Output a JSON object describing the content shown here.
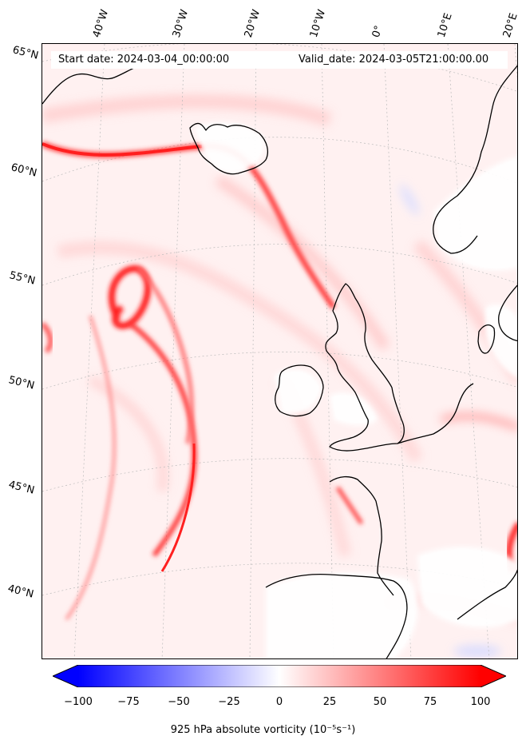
{
  "map": {
    "start_label": "Start date: 2024-03-04_00:00:00",
    "valid_label": "Valid_date: 2024-03-05T21:00:00.00",
    "lat_labels": [
      "65°N",
      "60°N",
      "55°N",
      "50°N",
      "45°N",
      "40°N"
    ],
    "lon_labels": [
      "40°W",
      "30°W",
      "20°W",
      "10°W",
      "0°",
      "10°E",
      "20°E"
    ]
  },
  "colorbar": {
    "ticks": [
      "−100",
      "−75",
      "−50",
      "−25",
      "0",
      "25",
      "50",
      "75",
      "100"
    ],
    "label": "925 hPa absolute vorticity (10⁻⁵s⁻¹)",
    "min": -100,
    "max": 100,
    "colormap": "bwr",
    "extend": "both"
  },
  "colors": {
    "background": "#fff1f1",
    "positive": "#ff0000",
    "negative": "#0000ff",
    "coast": "#000000"
  }
}
